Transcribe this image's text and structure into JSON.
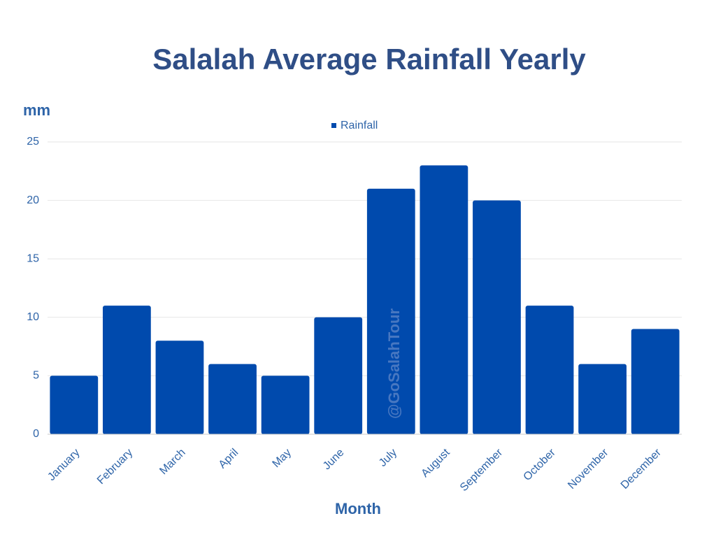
{
  "chart_data": {
    "type": "bar",
    "title": "Salalah Average Rainfall Yearly",
    "y_label": "mm",
    "x_label": "Month",
    "watermark": "@GoSalahTour",
    "categories": [
      "January",
      "February",
      "March",
      "April",
      "May",
      "June",
      "July",
      "August",
      "September",
      "October",
      "November",
      "December"
    ],
    "series": [
      {
        "name": "Rainfall",
        "color": "#004aad",
        "values": [
          5,
          11,
          8,
          6,
          5,
          10,
          21,
          23,
          20,
          11,
          6,
          9
        ]
      }
    ],
    "ylim": [
      0,
      25
    ],
    "yticks": [
      0,
      5,
      10,
      15,
      20,
      25
    ],
    "grid": true,
    "legend": "top"
  }
}
